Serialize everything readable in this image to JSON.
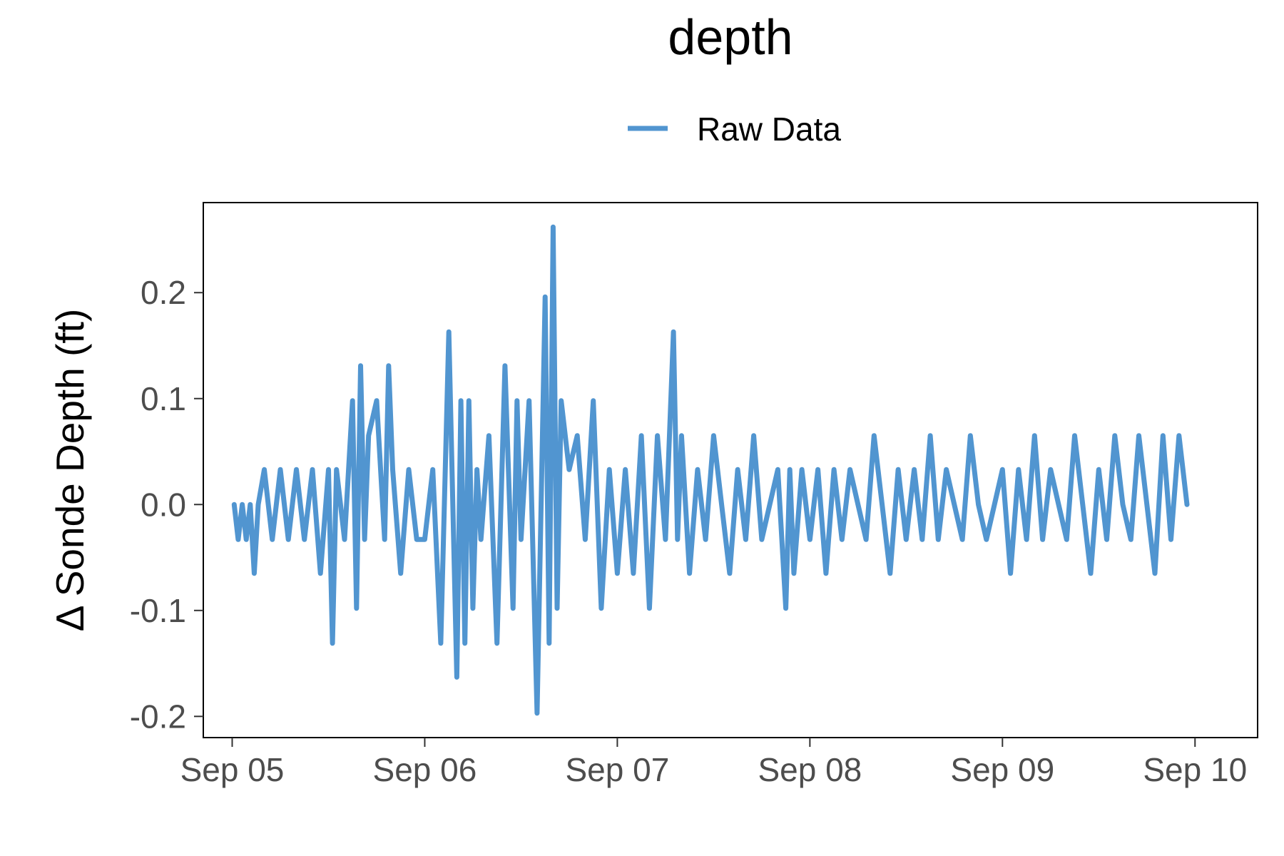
{
  "chart_data": {
    "type": "line",
    "title": "depth",
    "ylabel": "Δ Sonde Depth (ft)",
    "xlabel": "",
    "legend": {
      "position": "top",
      "entries": [
        "Raw Data"
      ]
    },
    "grid": false,
    "xlim": [
      "2023-09-04 20:24",
      "2023-09-10 07:48"
    ],
    "ylim": [
      -0.22,
      0.285
    ],
    "x_ticks": [
      {
        "value": "2023-09-05 00:00",
        "label": "Sep 05"
      },
      {
        "value": "2023-09-06 00:00",
        "label": "Sep 06"
      },
      {
        "value": "2023-09-07 00:00",
        "label": "Sep 07"
      },
      {
        "value": "2023-09-08 00:00",
        "label": "Sep 08"
      },
      {
        "value": "2023-09-09 00:00",
        "label": "Sep 09"
      },
      {
        "value": "2023-09-10 00:00",
        "label": "Sep 10"
      }
    ],
    "y_ticks": [
      {
        "value": 0.2,
        "label": "0.2"
      },
      {
        "value": 0.1,
        "label": "0.1"
      },
      {
        "value": 0.0,
        "label": "0.0"
      },
      {
        "value": -0.1,
        "label": "-0.1"
      },
      {
        "value": -0.2,
        "label": "-0.2"
      }
    ],
    "series": [
      {
        "name": "Raw Data",
        "color": "#5195d0",
        "x": [
          "2023-09-05 00:15",
          "2023-09-05 00:45",
          "2023-09-05 01:15",
          "2023-09-05 01:45",
          "2023-09-05 02:15",
          "2023-09-05 02:45",
          "2023-09-05 03:15",
          "2023-09-05 04:00",
          "2023-09-05 05:00",
          "2023-09-05 06:00",
          "2023-09-05 07:00",
          "2023-09-05 08:00",
          "2023-09-05 09:00",
          "2023-09-05 10:00",
          "2023-09-05 11:00",
          "2023-09-05 12:00",
          "2023-09-05 12:30",
          "2023-09-05 13:00",
          "2023-09-05 14:00",
          "2023-09-05 15:00",
          "2023-09-05 15:30",
          "2023-09-05 16:00",
          "2023-09-05 16:30",
          "2023-09-05 17:00",
          "2023-09-05 18:00",
          "2023-09-05 19:00",
          "2023-09-05 19:30",
          "2023-09-05 20:00",
          "2023-09-05 21:00",
          "2023-09-05 22:00",
          "2023-09-05 23:00",
          "2023-09-06 00:00",
          "2023-09-06 01:00",
          "2023-09-06 02:00",
          "2023-09-06 03:00",
          "2023-09-06 04:00",
          "2023-09-06 04:30",
          "2023-09-06 05:00",
          "2023-09-06 05:30",
          "2023-09-06 06:00",
          "2023-09-06 06:30",
          "2023-09-06 07:00",
          "2023-09-06 08:00",
          "2023-09-06 09:00",
          "2023-09-06 10:00",
          "2023-09-06 11:00",
          "2023-09-06 11:30",
          "2023-09-06 12:00",
          "2023-09-06 13:00",
          "2023-09-06 14:00",
          "2023-09-06 15:00",
          "2023-09-06 15:30",
          "2023-09-06 16:00",
          "2023-09-06 16:30",
          "2023-09-06 17:00",
          "2023-09-06 18:00",
          "2023-09-06 19:00",
          "2023-09-06 20:00",
          "2023-09-06 21:00",
          "2023-09-06 22:00",
          "2023-09-06 23:00",
          "2023-09-07 00:00",
          "2023-09-07 01:00",
          "2023-09-07 02:00",
          "2023-09-07 03:00",
          "2023-09-07 04:00",
          "2023-09-07 05:00",
          "2023-09-07 06:00",
          "2023-09-07 07:00",
          "2023-09-07 07:30",
          "2023-09-07 08:00",
          "2023-09-07 09:00",
          "2023-09-07 10:00",
          "2023-09-07 11:00",
          "2023-09-07 12:00",
          "2023-09-07 13:00",
          "2023-09-07 14:00",
          "2023-09-07 15:00",
          "2023-09-07 16:00",
          "2023-09-07 17:00",
          "2023-09-07 18:00",
          "2023-09-07 19:00",
          "2023-09-07 20:00",
          "2023-09-07 21:00",
          "2023-09-07 21:30",
          "2023-09-07 22:00",
          "2023-09-07 23:00",
          "2023-09-08 00:00",
          "2023-09-08 01:00",
          "2023-09-08 02:00",
          "2023-09-08 03:00",
          "2023-09-08 04:00",
          "2023-09-08 05:00",
          "2023-09-08 06:00",
          "2023-09-08 07:00",
          "2023-09-08 08:00",
          "2023-09-08 09:00",
          "2023-09-08 10:00",
          "2023-09-08 11:00",
          "2023-09-08 12:00",
          "2023-09-08 13:00",
          "2023-09-08 14:00",
          "2023-09-08 15:00",
          "2023-09-08 16:00",
          "2023-09-08 17:00",
          "2023-09-08 18:00",
          "2023-09-08 19:00",
          "2023-09-08 20:00",
          "2023-09-08 21:00",
          "2023-09-08 22:00",
          "2023-09-08 23:00",
          "2023-09-09 00:00",
          "2023-09-09 01:00",
          "2023-09-09 02:00",
          "2023-09-09 03:00",
          "2023-09-09 04:00",
          "2023-09-09 05:00",
          "2023-09-09 06:00",
          "2023-09-09 07:00",
          "2023-09-09 08:00",
          "2023-09-09 09:00",
          "2023-09-09 10:00",
          "2023-09-09 11:00",
          "2023-09-09 12:00",
          "2023-09-09 13:00",
          "2023-09-09 14:00",
          "2023-09-09 15:00",
          "2023-09-09 16:00",
          "2023-09-09 17:00",
          "2023-09-09 18:00",
          "2023-09-09 19:00",
          "2023-09-09 20:00",
          "2023-09-09 21:00",
          "2023-09-09 22:00",
          "2023-09-09 23:00"
        ],
        "y": [
          0.0,
          -0.033,
          0.0,
          -0.033,
          0.0,
          -0.065,
          0.0,
          0.033,
          -0.033,
          0.033,
          -0.033,
          0.033,
          -0.033,
          0.033,
          -0.065,
          0.033,
          -0.131,
          0.033,
          -0.033,
          0.098,
          -0.098,
          0.131,
          -0.033,
          0.065,
          0.098,
          -0.033,
          0.131,
          0.033,
          -0.065,
          0.033,
          -0.033,
          -0.033,
          0.033,
          -0.131,
          0.163,
          -0.163,
          0.098,
          -0.131,
          0.098,
          -0.098,
          0.033,
          -0.033,
          0.065,
          -0.131,
          0.131,
          -0.098,
          0.098,
          -0.033,
          0.098,
          -0.197,
          0.196,
          -0.131,
          0.262,
          -0.098,
          0.098,
          0.033,
          0.065,
          -0.033,
          0.098,
          -0.098,
          0.033,
          -0.065,
          0.033,
          -0.065,
          0.065,
          -0.098,
          0.065,
          -0.033,
          0.163,
          -0.033,
          0.065,
          -0.065,
          0.033,
          -0.033,
          0.065,
          0.0,
          -0.065,
          0.033,
          -0.033,
          0.065,
          -0.033,
          0.0,
          0.033,
          -0.098,
          0.033,
          -0.065,
          0.033,
          -0.033,
          0.033,
          -0.065,
          0.033,
          -0.033,
          0.033,
          0.0,
          -0.033,
          0.065,
          0.0,
          -0.065,
          0.033,
          -0.033,
          0.033,
          -0.033,
          0.065,
          -0.033,
          0.033,
          0.0,
          -0.033,
          0.065,
          0.0,
          -0.033,
          0.0,
          0.033,
          -0.065,
          0.033,
          -0.033,
          0.065,
          -0.033,
          0.033,
          0.0,
          -0.033,
          0.065,
          0.0,
          -0.065,
          0.033,
          -0.033,
          0.065,
          0.0,
          -0.033,
          0.065,
          0.0,
          -0.065,
          0.065,
          -0.033,
          0.065,
          0.0
        ]
      }
    ]
  }
}
